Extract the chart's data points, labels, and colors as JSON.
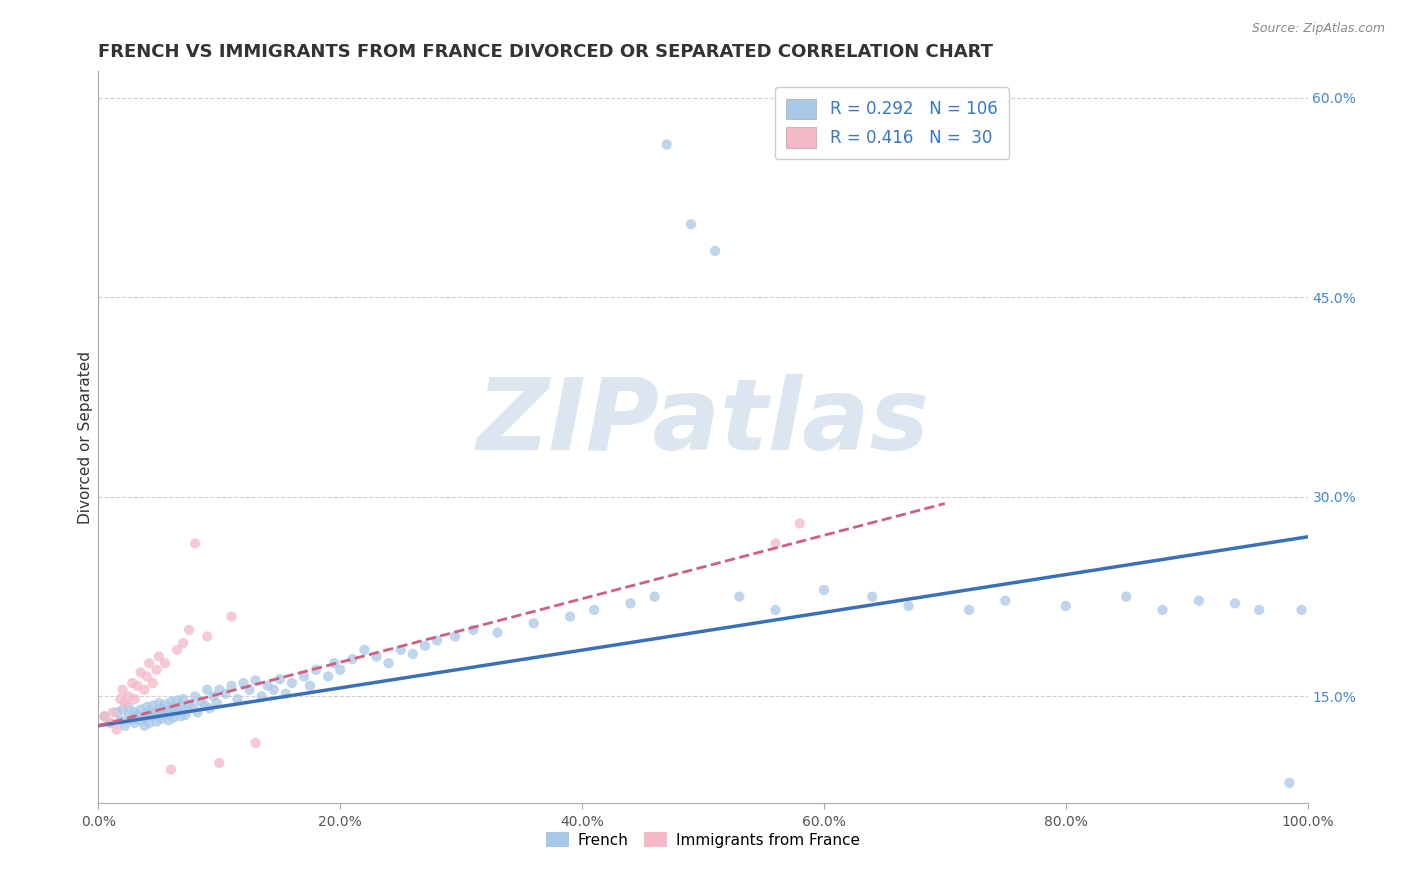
{
  "title": "FRENCH VS IMMIGRANTS FROM FRANCE DIVORCED OR SEPARATED CORRELATION CHART",
  "source_text": "Source: ZipAtlas.com",
  "ylabel": "Divorced or Separated",
  "watermark": "ZIPatlas",
  "xlim": [
    0.0,
    1.0
  ],
  "ylim": [
    0.07,
    0.62
  ],
  "yticks_right": [
    0.15,
    0.3,
    0.45,
    0.6
  ],
  "ytick_labels_right": [
    "15.0%",
    "30.0%",
    "45.0%",
    "60.0%"
  ],
  "xtick_vals": [
    0.0,
    0.2,
    0.4,
    0.6,
    0.8,
    1.0
  ],
  "xtick_labels": [
    "0.0%",
    "20.0%",
    "40.0%",
    "60.0%",
    "80.0%",
    "100.0%"
  ],
  "color_blue": "#a8c8e8",
  "color_blue_line": "#3a6fba",
  "color_pink": "#f4b8c8",
  "color_pink_line": "#d06080",
  "color_grid": "#d0d0d0",
  "background_color": "#ffffff",
  "blue_scatter_x": [
    0.005,
    0.01,
    0.015,
    0.018,
    0.02,
    0.022,
    0.025,
    0.025,
    0.028,
    0.03,
    0.03,
    0.032,
    0.035,
    0.035,
    0.038,
    0.038,
    0.04,
    0.04,
    0.042,
    0.042,
    0.045,
    0.045,
    0.048,
    0.048,
    0.05,
    0.05,
    0.052,
    0.052,
    0.055,
    0.055,
    0.058,
    0.058,
    0.06,
    0.06,
    0.062,
    0.062,
    0.065,
    0.065,
    0.068,
    0.068,
    0.07,
    0.07,
    0.072,
    0.075,
    0.078,
    0.08,
    0.082,
    0.085,
    0.088,
    0.09,
    0.092,
    0.095,
    0.098,
    0.1,
    0.105,
    0.11,
    0.115,
    0.12,
    0.125,
    0.13,
    0.135,
    0.14,
    0.145,
    0.15,
    0.155,
    0.16,
    0.17,
    0.175,
    0.18,
    0.19,
    0.195,
    0.2,
    0.21,
    0.22,
    0.23,
    0.24,
    0.25,
    0.26,
    0.27,
    0.28,
    0.295,
    0.31,
    0.33,
    0.36,
    0.39,
    0.41,
    0.44,
    0.46,
    0.47,
    0.49,
    0.51,
    0.53,
    0.56,
    0.6,
    0.64,
    0.67,
    0.72,
    0.75,
    0.8,
    0.85,
    0.88,
    0.91,
    0.94,
    0.96,
    0.985,
    0.995
  ],
  "blue_scatter_y": [
    0.135,
    0.13,
    0.138,
    0.132,
    0.14,
    0.128,
    0.135,
    0.142,
    0.133,
    0.13,
    0.138,
    0.136,
    0.132,
    0.14,
    0.134,
    0.128,
    0.136,
    0.142,
    0.13,
    0.138,
    0.135,
    0.143,
    0.131,
    0.139,
    0.137,
    0.145,
    0.133,
    0.141,
    0.136,
    0.144,
    0.132,
    0.14,
    0.138,
    0.146,
    0.134,
    0.142,
    0.139,
    0.147,
    0.135,
    0.143,
    0.14,
    0.148,
    0.136,
    0.144,
    0.142,
    0.15,
    0.138,
    0.146,
    0.143,
    0.155,
    0.141,
    0.15,
    0.145,
    0.155,
    0.152,
    0.158,
    0.148,
    0.16,
    0.155,
    0.162,
    0.15,
    0.158,
    0.155,
    0.163,
    0.152,
    0.16,
    0.165,
    0.158,
    0.17,
    0.165,
    0.175,
    0.17,
    0.178,
    0.185,
    0.18,
    0.175,
    0.185,
    0.182,
    0.188,
    0.192,
    0.195,
    0.2,
    0.198,
    0.205,
    0.21,
    0.215,
    0.22,
    0.225,
    0.565,
    0.505,
    0.485,
    0.225,
    0.215,
    0.23,
    0.225,
    0.218,
    0.215,
    0.222,
    0.218,
    0.225,
    0.215,
    0.222,
    0.22,
    0.215,
    0.085,
    0.215
  ],
  "pink_scatter_x": [
    0.005,
    0.01,
    0.012,
    0.015,
    0.018,
    0.02,
    0.022,
    0.025,
    0.028,
    0.03,
    0.032,
    0.035,
    0.038,
    0.04,
    0.042,
    0.045,
    0.048,
    0.05,
    0.055,
    0.06,
    0.065,
    0.07,
    0.075,
    0.08,
    0.09,
    0.1,
    0.11,
    0.13,
    0.56,
    0.58
  ],
  "pink_scatter_y": [
    0.135,
    0.13,
    0.138,
    0.125,
    0.148,
    0.155,
    0.145,
    0.15,
    0.16,
    0.148,
    0.158,
    0.168,
    0.155,
    0.165,
    0.175,
    0.16,
    0.17,
    0.18,
    0.175,
    0.095,
    0.185,
    0.19,
    0.2,
    0.265,
    0.195,
    0.1,
    0.21,
    0.115,
    0.265,
    0.28
  ],
  "blue_line_x": [
    0.0,
    1.0
  ],
  "blue_line_y": [
    0.128,
    0.27
  ],
  "pink_line_x": [
    0.0,
    0.7
  ],
  "pink_line_y": [
    0.128,
    0.295
  ],
  "title_fontsize": 13,
  "axis_label_fontsize": 11,
  "tick_fontsize": 10,
  "legend_fontsize": 12,
  "watermark_fontsize": 72,
  "watermark_color": "#b0c8e0",
  "watermark_alpha": 0.45,
  "dot_size": 55,
  "dot_alpha": 0.75,
  "legend_r1": "R = 0.292",
  "legend_n1": "N = 106",
  "legend_r2": "R = 0.416",
  "legend_n2": "30"
}
